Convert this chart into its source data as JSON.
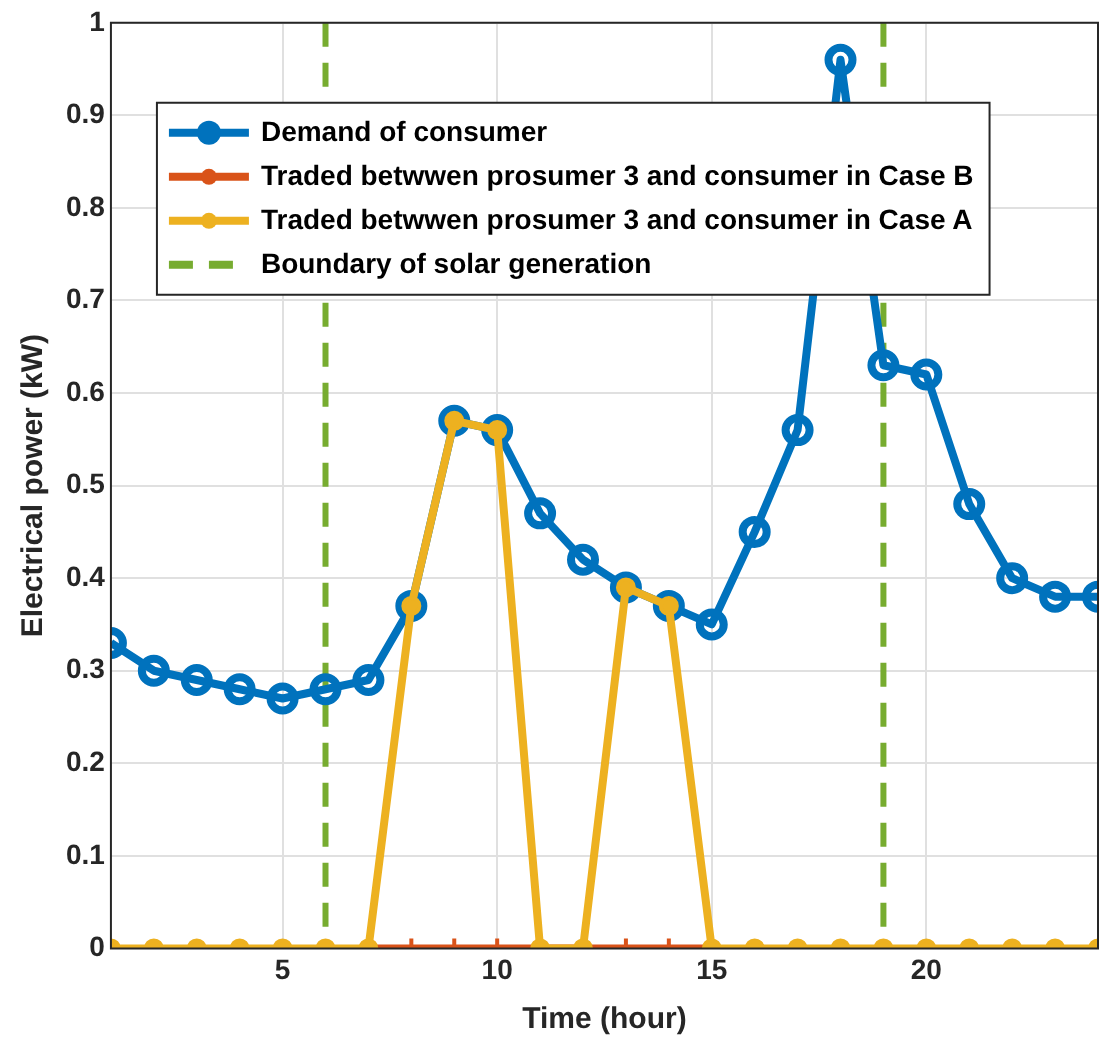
{
  "chart_data": {
    "type": "line",
    "xlabel": "Time (hour)",
    "ylabel": "Electrical power (kW)",
    "x": [
      1,
      2,
      3,
      4,
      5,
      6,
      7,
      8,
      9,
      10,
      11,
      12,
      13,
      14,
      15,
      16,
      17,
      18,
      19,
      20,
      21,
      22,
      23,
      24
    ],
    "series": [
      {
        "name": "Demand of consumer",
        "color": "#0072bd",
        "marker": "circle",
        "values": [
          0.33,
          0.3,
          0.29,
          0.28,
          0.27,
          0.28,
          0.29,
          0.37,
          0.57,
          0.56,
          0.47,
          0.42,
          0.39,
          0.37,
          0.35,
          0.45,
          0.56,
          0.96,
          0.63,
          0.62,
          0.48,
          0.4,
          0.38,
          0.38
        ]
      },
      {
        "name": "Traded betwwen prosumer 3 and consumer in Case B",
        "color": "#d95319",
        "marker": "cross",
        "values": [
          null,
          null,
          null,
          null,
          null,
          null,
          0,
          0,
          0,
          0,
          0,
          0,
          0,
          0,
          0,
          null,
          null,
          null,
          null,
          null,
          null,
          null,
          null,
          null
        ]
      },
      {
        "name": "Traded betwwen prosumer 3 and consumer in Case A",
        "color": "#edb120",
        "marker": "circle",
        "values": [
          0,
          0,
          0,
          0,
          0,
          0,
          0,
          0.37,
          0.57,
          0.56,
          0,
          0,
          0.39,
          0.37,
          0,
          0,
          0,
          0,
          0,
          0,
          0,
          0,
          0,
          0
        ]
      }
    ],
    "ref_lines": [
      {
        "axis": "x",
        "value": 6,
        "label": "Boundary of solar generation",
        "color": "#77ac30",
        "line_style": "dashed"
      },
      {
        "axis": "x",
        "value": 19,
        "color": "#77ac30",
        "line_style": "dashed"
      }
    ],
    "xlim": [
      1,
      24
    ],
    "xticks": [
      5,
      10,
      15,
      20
    ],
    "ylim": [
      0,
      1
    ],
    "yticks": [
      0,
      0.1,
      0.2,
      0.3,
      0.4,
      0.5,
      0.6,
      0.7,
      0.8,
      0.9,
      1
    ],
    "grid": true,
    "legend": "top left",
    "line_style": "solid"
  }
}
